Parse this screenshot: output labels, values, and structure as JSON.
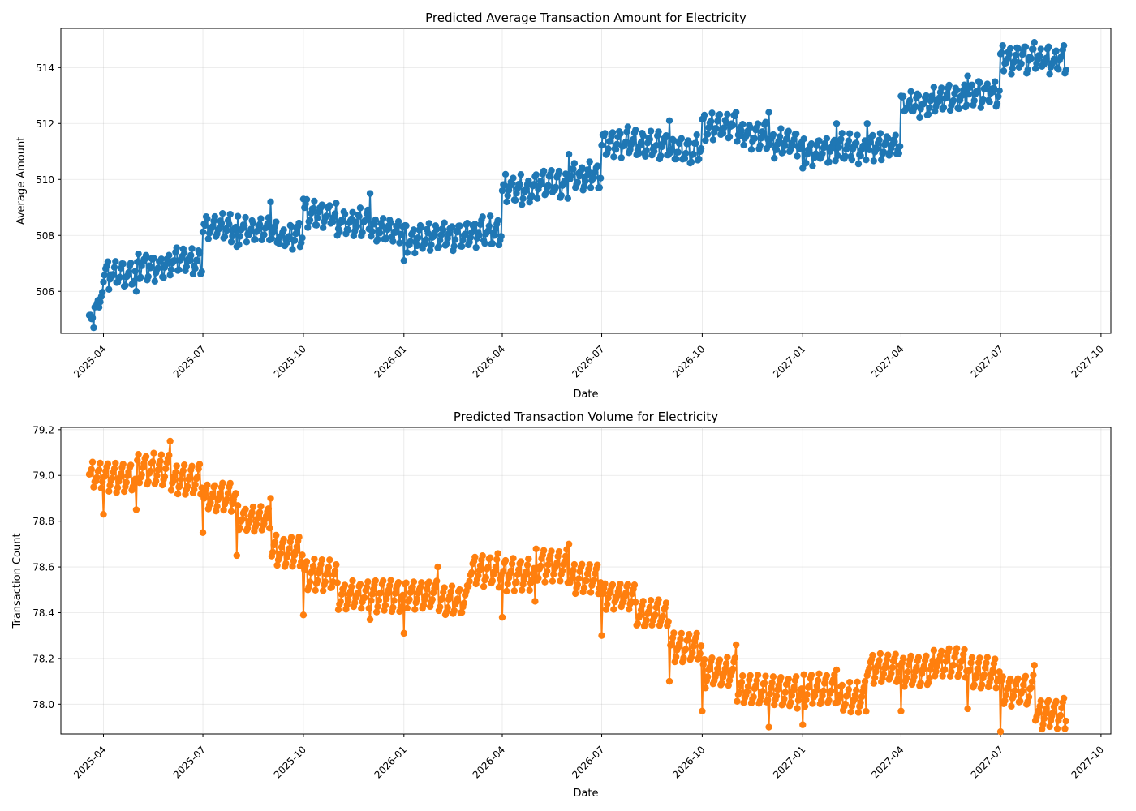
{
  "chart_data": [
    {
      "type": "line",
      "title": "Predicted Average Transaction Amount for Electricity",
      "xlabel": "Date",
      "ylabel": "Average Amount",
      "color": "#1f77b4",
      "marker": "circle",
      "grid": true,
      "xlim": [
        "2025-02-21",
        "2027-10-10"
      ],
      "ylim": [
        504.5,
        515.4
      ],
      "x_ticks": [
        "2025-04",
        "2025-07",
        "2025-10",
        "2026-01",
        "2026-04",
        "2026-07",
        "2026-10",
        "2027-01",
        "2027-04",
        "2027-07",
        "2027-10"
      ],
      "y_ticks": [
        "506",
        "508",
        "510",
        "512",
        "514"
      ],
      "y_tick_values": [
        506,
        508,
        510,
        512,
        514
      ],
      "series": [
        {
          "x_start": "2025-03-19",
          "x_end": "2027-08-30",
          "frequency": "daily",
          "months": [
            {
              "month": "2025-03",
              "start": 505.0
            },
            {
              "month": "2025-04",
              "base": 506.2,
              "amp": 0.8,
              "noise": 0.15
            },
            {
              "month": "2025-05",
              "base": 506.5,
              "amp": 0.8,
              "noise": 0.15
            },
            {
              "month": "2025-06",
              "base": 506.7,
              "amp": 0.8,
              "noise": 0.15
            },
            {
              "month": "2025-07",
              "base": 507.9,
              "amp": 0.75,
              "noise": 0.15
            },
            {
              "month": "2025-08",
              "base": 507.8,
              "amp": 0.75,
              "noise": 0.15
            },
            {
              "month": "2025-09",
              "base": 507.6,
              "amp": 0.75,
              "noise": 0.15
            },
            {
              "month": "2025-10",
              "base": 508.3,
              "amp": 0.9,
              "noise": 0.15
            },
            {
              "month": "2025-11",
              "base": 508.1,
              "amp": 0.75,
              "noise": 0.15
            },
            {
              "month": "2025-12",
              "base": 507.8,
              "amp": 0.75,
              "noise": 0.15
            },
            {
              "month": "2026-01",
              "base": 507.5,
              "amp": 0.85,
              "noise": 0.15
            },
            {
              "month": "2026-02",
              "base": 507.6,
              "amp": 0.85,
              "noise": 0.15
            },
            {
              "month": "2026-03",
              "base": 507.7,
              "amp": 0.85,
              "noise": 0.15
            },
            {
              "month": "2026-04",
              "base": 509.2,
              "amp": 0.85,
              "noise": 0.15
            },
            {
              "month": "2026-05",
              "base": 509.4,
              "amp": 0.85,
              "noise": 0.15
            },
            {
              "month": "2026-06",
              "base": 509.7,
              "amp": 0.85,
              "noise": 0.15
            },
            {
              "month": "2026-07",
              "base": 510.9,
              "amp": 0.85,
              "noise": 0.15
            },
            {
              "month": "2026-08",
              "base": 510.8,
              "amp": 0.85,
              "noise": 0.15
            },
            {
              "month": "2026-09",
              "base": 510.6,
              "amp": 0.85,
              "noise": 0.15
            },
            {
              "month": "2026-10",
              "base": 511.5,
              "amp": 0.8,
              "noise": 0.15
            },
            {
              "month": "2026-11",
              "base": 511.2,
              "amp": 0.8,
              "noise": 0.15
            },
            {
              "month": "2026-12",
              "base": 510.9,
              "amp": 0.8,
              "noise": 0.15
            },
            {
              "month": "2027-01",
              "base": 510.6,
              "amp": 0.8,
              "noise": 0.15
            },
            {
              "month": "2027-02",
              "base": 510.7,
              "amp": 0.8,
              "noise": 0.15
            },
            {
              "month": "2027-03",
              "base": 510.8,
              "amp": 0.8,
              "noise": 0.15
            },
            {
              "month": "2027-04",
              "base": 512.3,
              "amp": 0.8,
              "noise": 0.15
            },
            {
              "month": "2027-05",
              "base": 512.5,
              "amp": 0.8,
              "noise": 0.15
            },
            {
              "month": "2027-06",
              "base": 512.7,
              "amp": 0.8,
              "noise": 0.15
            },
            {
              "month": "2027-07",
              "base": 513.9,
              "amp": 0.85,
              "noise": 0.15
            },
            {
              "month": "2027-08",
              "base": 513.9,
              "amp": 0.75,
              "noise": 0.15
            }
          ],
          "outliers": [
            {
              "x": "2025-03-23",
              "y": 504.7
            },
            {
              "x": "2025-05-01",
              "y": 506.0
            },
            {
              "x": "2025-08-01",
              "y": 507.6
            },
            {
              "x": "2025-09-01",
              "y": 509.2
            },
            {
              "x": "2025-10-01",
              "y": 509.3
            },
            {
              "x": "2025-11-01",
              "y": 508.0
            },
            {
              "x": "2025-12-01",
              "y": 509.5
            },
            {
              "x": "2026-01-01",
              "y": 507.1
            },
            {
              "x": "2026-06-01",
              "y": 510.9
            },
            {
              "x": "2026-09-01",
              "y": 512.1
            },
            {
              "x": "2026-11-01",
              "y": 512.4
            },
            {
              "x": "2026-12-01",
              "y": 512.4
            },
            {
              "x": "2027-01-01",
              "y": 510.4
            },
            {
              "x": "2027-02-01",
              "y": 512.0
            },
            {
              "x": "2027-03-01",
              "y": 512.0
            },
            {
              "x": "2027-06-01",
              "y": 513.7
            },
            {
              "x": "2027-08-01",
              "y": 514.9
            }
          ]
        }
      ]
    },
    {
      "type": "line",
      "title": "Predicted Transaction Volume for Electricity",
      "xlabel": "Date",
      "ylabel": "Transaction Count",
      "color": "#ff7f0e",
      "marker": "circle",
      "grid": true,
      "xlim": [
        "2025-02-21",
        "2027-10-10"
      ],
      "ylim": [
        77.87,
        79.21
      ],
      "x_ticks": [
        "2025-04",
        "2025-07",
        "2025-10",
        "2026-01",
        "2026-04",
        "2026-07",
        "2026-10",
        "2027-01",
        "2027-04",
        "2027-07",
        "2027-10"
      ],
      "y_ticks": [
        "78.0",
        "78.2",
        "78.4",
        "78.6",
        "78.8",
        "79.0",
        "79.2"
      ],
      "y_tick_values": [
        78.0,
        78.2,
        78.4,
        78.6,
        78.8,
        79.0,
        79.2
      ],
      "series": [
        {
          "x_start": "2025-03-19",
          "x_end": "2027-08-30",
          "frequency": "daily",
          "months": [
            {
              "month": "2025-03",
              "base": 78.95,
              "amp": 0.1,
              "noise": 0.01
            },
            {
              "month": "2025-04",
              "base": 78.93,
              "amp": 0.12,
              "noise": 0.01
            },
            {
              "month": "2025-05",
              "base": 78.96,
              "amp": 0.13,
              "noise": 0.01
            },
            {
              "month": "2025-06",
              "base": 78.92,
              "amp": 0.12,
              "noise": 0.01
            },
            {
              "month": "2025-07",
              "base": 78.85,
              "amp": 0.11,
              "noise": 0.01
            },
            {
              "month": "2025-08",
              "base": 78.76,
              "amp": 0.1,
              "noise": 0.01
            },
            {
              "month": "2025-09",
              "base": 78.6,
              "amp": 0.13,
              "noise": 0.01
            },
            {
              "month": "2025-10",
              "base": 78.5,
              "amp": 0.13,
              "noise": 0.01
            },
            {
              "month": "2025-11",
              "base": 78.42,
              "amp": 0.11,
              "noise": 0.01
            },
            {
              "month": "2025-12",
              "base": 78.41,
              "amp": 0.13,
              "noise": 0.01
            },
            {
              "month": "2026-01",
              "base": 78.42,
              "amp": 0.12,
              "noise": 0.01
            },
            {
              "month": "2026-02",
              "base": 78.39,
              "amp": 0.12,
              "noise": 0.01
            },
            {
              "month": "2026-03",
              "base": 78.52,
              "amp": 0.13,
              "noise": 0.01
            },
            {
              "month": "2026-04",
              "base": 78.5,
              "amp": 0.13,
              "noise": 0.01
            },
            {
              "month": "2026-05",
              "base": 78.54,
              "amp": 0.13,
              "noise": 0.01
            },
            {
              "month": "2026-06",
              "base": 78.49,
              "amp": 0.12,
              "noise": 0.01
            },
            {
              "month": "2026-07",
              "base": 78.42,
              "amp": 0.11,
              "noise": 0.01
            },
            {
              "month": "2026-08",
              "base": 78.34,
              "amp": 0.11,
              "noise": 0.01
            },
            {
              "month": "2026-09",
              "base": 78.19,
              "amp": 0.12,
              "noise": 0.01
            },
            {
              "month": "2026-10",
              "base": 78.08,
              "amp": 0.12,
              "noise": 0.01
            },
            {
              "month": "2026-11",
              "base": 78.0,
              "amp": 0.12,
              "noise": 0.01
            },
            {
              "month": "2026-12",
              "base": 77.99,
              "amp": 0.13,
              "noise": 0.01
            },
            {
              "month": "2027-01",
              "base": 78.0,
              "amp": 0.13,
              "noise": 0.01
            },
            {
              "month": "2027-02",
              "base": 77.97,
              "amp": 0.12,
              "noise": 0.01
            },
            {
              "month": "2027-03",
              "base": 78.1,
              "amp": 0.12,
              "noise": 0.01
            },
            {
              "month": "2027-04",
              "base": 78.08,
              "amp": 0.13,
              "noise": 0.01
            },
            {
              "month": "2027-05",
              "base": 78.12,
              "amp": 0.12,
              "noise": 0.01
            },
            {
              "month": "2027-06",
              "base": 78.07,
              "amp": 0.13,
              "noise": 0.01
            },
            {
              "month": "2027-07",
              "base": 78.0,
              "amp": 0.12,
              "noise": 0.01
            },
            {
              "month": "2027-08",
              "base": 77.9,
              "amp": 0.12,
              "noise": 0.01
            }
          ],
          "outliers": [
            {
              "x": "2025-04-01",
              "y": 78.83
            },
            {
              "x": "2025-05-01",
              "y": 78.85
            },
            {
              "x": "2025-06-01",
              "y": 79.15
            },
            {
              "x": "2025-07-01",
              "y": 78.75
            },
            {
              "x": "2025-08-01",
              "y": 78.65
            },
            {
              "x": "2025-09-01",
              "y": 78.9
            },
            {
              "x": "2025-10-01",
              "y": 78.39
            },
            {
              "x": "2025-12-01",
              "y": 78.37
            },
            {
              "x": "2026-01-01",
              "y": 78.31
            },
            {
              "x": "2026-02-01",
              "y": 78.6
            },
            {
              "x": "2026-04-01",
              "y": 78.38
            },
            {
              "x": "2026-05-01",
              "y": 78.45
            },
            {
              "x": "2026-06-01",
              "y": 78.7
            },
            {
              "x": "2026-07-01",
              "y": 78.3
            },
            {
              "x": "2026-09-01",
              "y": 78.1
            },
            {
              "x": "2026-10-01",
              "y": 77.97
            },
            {
              "x": "2026-11-01",
              "y": 78.26
            },
            {
              "x": "2026-12-01",
              "y": 77.9
            },
            {
              "x": "2027-01-01",
              "y": 77.91
            },
            {
              "x": "2027-02-01",
              "y": 78.15
            },
            {
              "x": "2027-04-01",
              "y": 77.97
            },
            {
              "x": "2027-06-01",
              "y": 77.98
            },
            {
              "x": "2027-07-01",
              "y": 77.88
            },
            {
              "x": "2027-08-01",
              "y": 78.17
            }
          ]
        }
      ]
    }
  ]
}
